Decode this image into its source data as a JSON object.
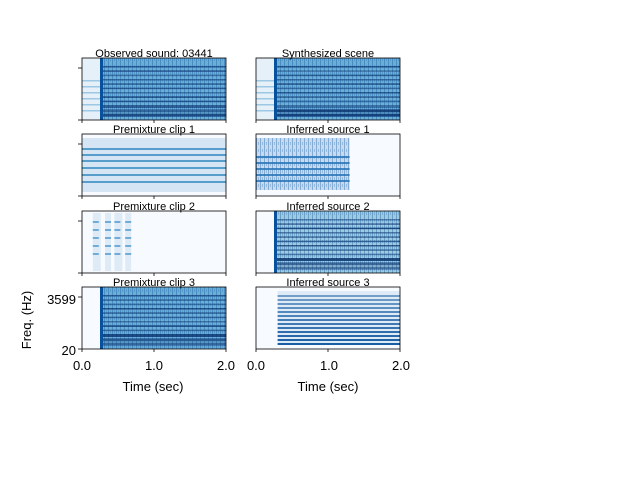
{
  "chart_data": {
    "type": "heatmap",
    "layout": "4 rows x 2 columns of spectrograms",
    "colormap": "Blues",
    "xlim": [
      0.0,
      2.0
    ],
    "x_ticks": [
      "0.0",
      "1.0",
      "2.0"
    ],
    "xlabel": "Time (sec)",
    "ylabel": "Freq. (Hz)",
    "y_ticks": [
      "3599",
      "20"
    ],
    "panels": [
      {
        "title": "Observed sound: 03441",
        "onset_sec": 0.25,
        "offset_sec": 2.0,
        "pattern": "harmonic-dense",
        "pre_noise": true
      },
      {
        "title": "Synthesized scene",
        "onset_sec": 0.25,
        "offset_sec": 2.0,
        "pattern": "harmonic-dense",
        "pre_noise": true
      },
      {
        "title": "Premixture clip 1",
        "onset_sec": 0.0,
        "offset_sec": 2.0,
        "pattern": "stationary-bands",
        "pre_noise": false
      },
      {
        "title": "Inferred source 1",
        "onset_sec": 0.0,
        "offset_sec": 1.3,
        "pattern": "noisy-bands",
        "pre_noise": false
      },
      {
        "title": "Premixture clip 2",
        "onset_sec": 0.15,
        "offset_sec": 0.75,
        "pattern": "bursts",
        "pre_noise": false
      },
      {
        "title": "Inferred source 2",
        "onset_sec": 0.25,
        "offset_sec": 2.0,
        "pattern": "noisy-dense",
        "pre_noise": false
      },
      {
        "title": "Premixture clip 3",
        "onset_sec": 0.25,
        "offset_sec": 2.0,
        "pattern": "harmonic-dense",
        "pre_noise": false
      },
      {
        "title": "Inferred source 3",
        "onset_sec": 0.3,
        "offset_sec": 2.0,
        "pattern": "clean-harmonics",
        "pre_noise": false
      }
    ]
  }
}
